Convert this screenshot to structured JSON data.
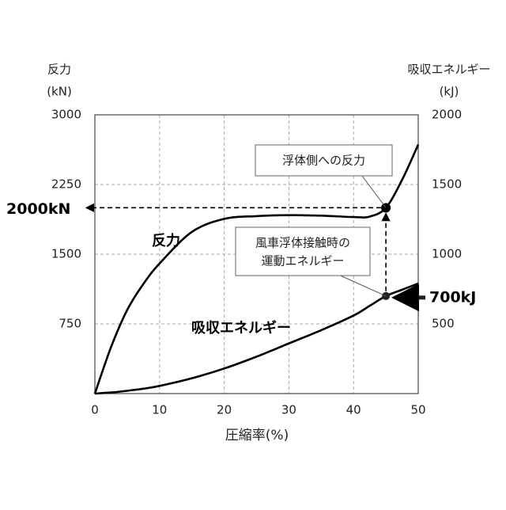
{
  "chart_data": {
    "type": "line",
    "x_label": "圧縮率(%)",
    "y_label": "反力",
    "y_unit": "(kN)",
    "y2_label": "吸収エネルギー",
    "y2_unit": "(kJ)",
    "x": [
      0,
      2.5,
      5,
      7.5,
      10,
      15,
      20,
      25,
      30,
      35,
      40,
      42.5,
      45,
      47.5,
      50
    ],
    "series": [
      {
        "name": "反力",
        "color": "#000000",
        "values": [
          0,
          500,
          900,
          1180,
          1400,
          1740,
          1880,
          1910,
          1920,
          1915,
          1900,
          1905,
          2000,
          2300,
          2680
        ]
      },
      {
        "name": "吸収エネルギー",
        "color": "#000000",
        "axis": "y2",
        "values": [
          0,
          8,
          20,
          35,
          55,
          110,
          180,
          265,
          360,
          455,
          560,
          630,
          700,
          745,
          790
        ]
      }
    ],
    "xlim": [
      0,
      50
    ],
    "xticks": [
      0,
      10,
      20,
      30,
      40,
      50
    ],
    "ylim": [
      0,
      3000
    ],
    "yticks": [
      750,
      1500,
      2250,
      3000
    ],
    "y2lim": [
      0,
      2000
    ],
    "y2ticks": [
      500,
      1000,
      1500,
      2000
    ],
    "grid": true,
    "annotations": [
      {
        "text": "2000kN",
        "x": 45,
        "y": 2000
      },
      {
        "text": "700kJ",
        "x": 45,
        "y": 700,
        "axis": "y2"
      }
    ],
    "callouts": [
      {
        "lines": [
          "浮体側への反力"
        ]
      },
      {
        "lines": [
          "風車浮体接触時の",
          "運動エネルギー"
        ]
      }
    ]
  }
}
